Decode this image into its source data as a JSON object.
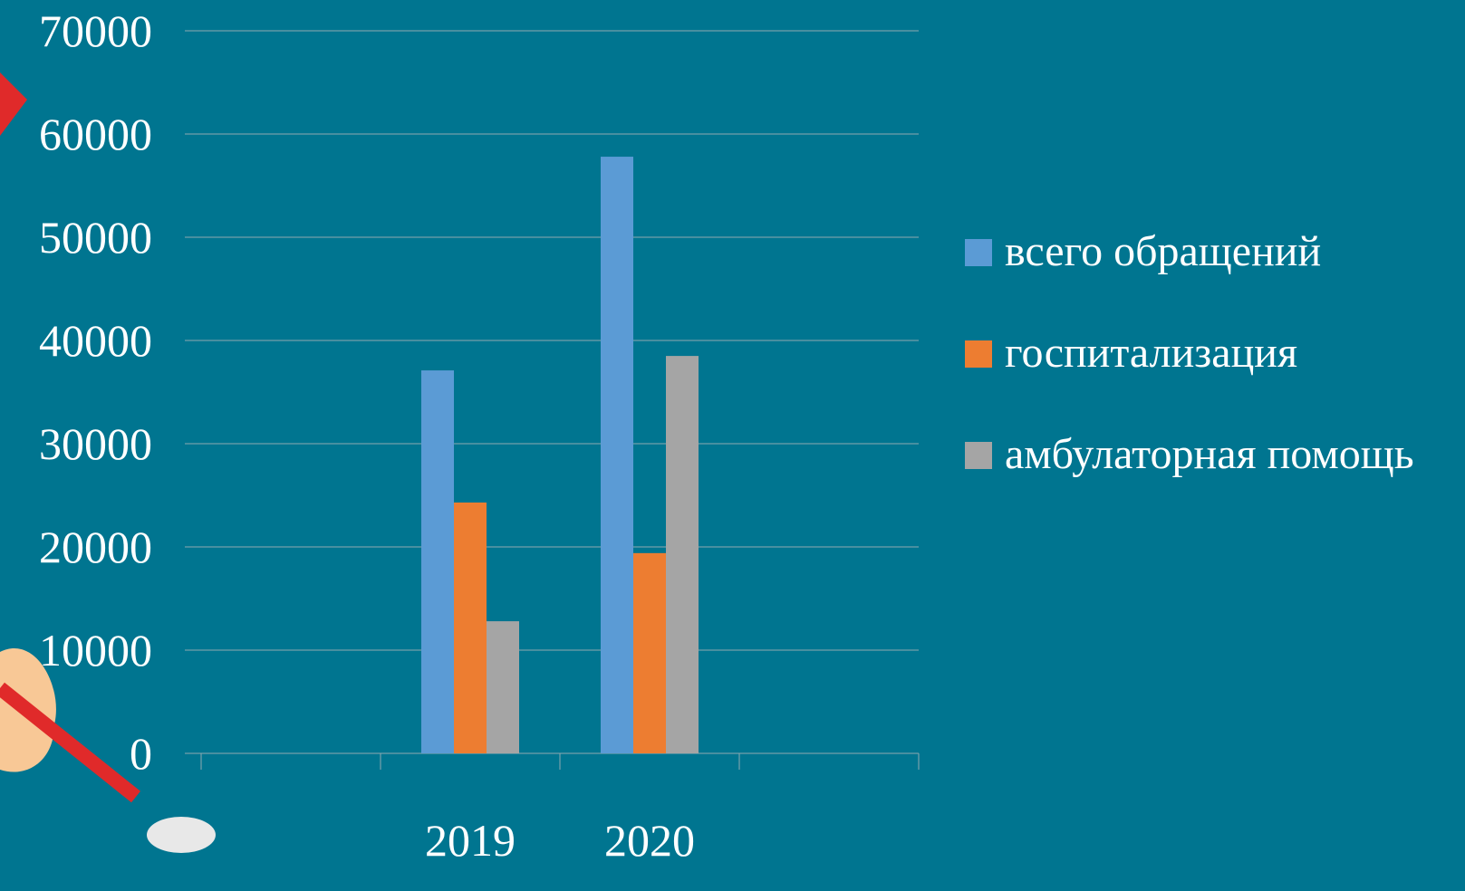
{
  "chart_data": {
    "type": "bar",
    "categories": [
      null,
      "2019",
      "2020",
      null
    ],
    "series": [
      {
        "name": "всего обращений",
        "color": "#5b9bd5",
        "values": [
          null,
          37100,
          57800,
          null
        ]
      },
      {
        "name": "госпитализация",
        "color": "#ed7d31",
        "values": [
          null,
          24300,
          19400,
          null
        ]
      },
      {
        "name": "амбулаторная помощь",
        "color": "#a5a5a5",
        "values": [
          null,
          12800,
          38500,
          null
        ]
      }
    ],
    "ylim": [
      0,
      70000
    ],
    "yticks": [
      0,
      10000,
      20000,
      30000,
      40000,
      50000,
      60000,
      70000
    ],
    "grid": true,
    "legend": "right"
  }
}
